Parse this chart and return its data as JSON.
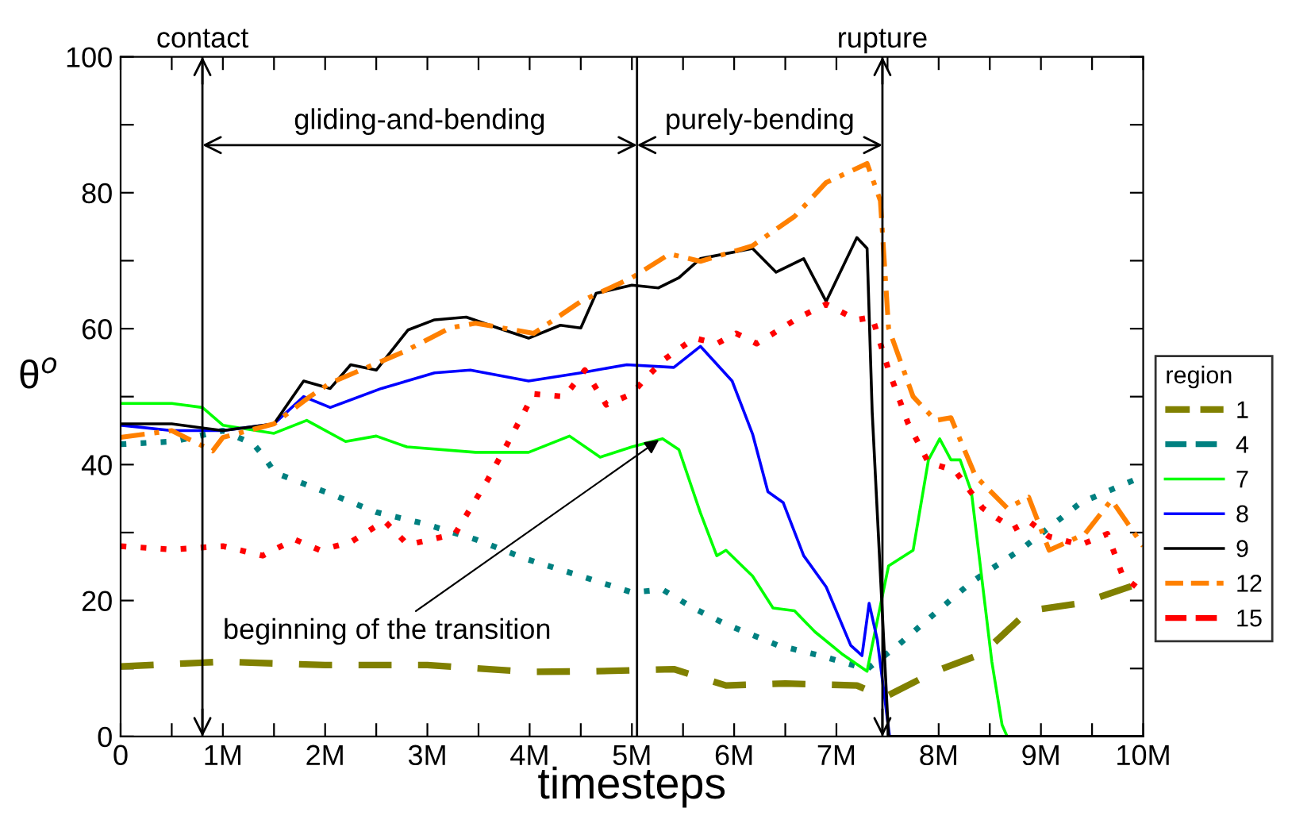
{
  "chart_data": {
    "type": "line",
    "xlabel": "timesteps",
    "ylabel": "θ$^{o}$",
    "legend_title": "region",
    "legend": "right",
    "xlim": [
      0,
      10000000
    ],
    "ylim": [
      0,
      100
    ],
    "xticks": [
      0,
      {
        "value": 500000,
        "label": null
      },
      {
        "value": 1000000,
        "label": "1M"
      },
      {
        "value": 1500000,
        "label": null
      },
      {
        "value": 2000000,
        "label": "2M"
      },
      {
        "value": 2500000,
        "label": null
      },
      {
        "value": 3000000,
        "label": "3M"
      },
      {
        "value": 3500000,
        "label": null
      },
      {
        "value": 4000000,
        "label": "4M"
      },
      {
        "value": 4500000,
        "label": null
      },
      {
        "value": 5000000,
        "label": "5M"
      },
      {
        "value": 5500000,
        "label": null
      },
      {
        "value": 6000000,
        "label": "6M"
      },
      {
        "value": 6500000,
        "label": null
      },
      {
        "value": 7000000,
        "label": "7M"
      },
      {
        "value": 7500000,
        "label": null
      },
      {
        "value": 8000000,
        "label": "8M"
      },
      {
        "value": 8500000,
        "label": null
      },
      {
        "value": 9000000,
        "label": "9M"
      },
      {
        "value": 9500000,
        "label": null
      },
      {
        "value": 10000000,
        "label": "10M"
      }
    ],
    "yticks": [
      0,
      {
        "value": 10,
        "label": null
      },
      20,
      {
        "value": 30,
        "label": null
      },
      40,
      {
        "value": 50,
        "label": null
      },
      60,
      {
        "value": 70,
        "label": null
      },
      80,
      {
        "value": 90,
        "label": null
      },
      100
    ],
    "ref_lines": [
      {
        "axis": "x",
        "value": 800000,
        "label": "contact"
      },
      {
        "axis": "x",
        "value": 5050000
      },
      {
        "axis": "x",
        "value": 7450000,
        "label": "rupture"
      }
    ],
    "annotations": [
      "gliding-and-bending",
      "purely-bending",
      {
        "text": "beginning of the transition",
        "x": 5300000,
        "y": 44
      }
    ],
    "series": [
      {
        "name": "1",
        "color": "#808000",
        "line_style": "dashed",
        "x": [
          0,
          1000000,
          2000000,
          3000000,
          4000000,
          4650000,
          5410000,
          5920000,
          6500000,
          7200000,
          7430000,
          7500000,
          7970000,
          8430000,
          8880000,
          9390000,
          10000000
        ],
        "values": [
          10.3,
          11,
          10.5,
          10.5,
          9.5,
          9.6,
          9.9,
          7.5,
          7.8,
          7.5,
          6,
          6,
          9.6,
          12.2,
          18.5,
          19.6,
          22.7
        ]
      },
      {
        "name": "4",
        "color": "#008080",
        "line_style": "dotted",
        "x": [
          0,
          520000,
          1000000,
          1300000,
          1390000,
          1510000,
          2000000,
          2500000,
          2970000,
          3470000,
          3990000,
          4500000,
          5000000,
          5300000,
          5600000,
          5920000,
          6430000,
          6840000,
          7300000,
          7600000,
          7900000,
          8320000,
          8830000,
          9390000,
          10000000
        ],
        "values": [
          43,
          43.4,
          45,
          43,
          41.4,
          38.8,
          36,
          33,
          31.3,
          29,
          26,
          23.6,
          21.2,
          21.6,
          18.9,
          16.5,
          13.4,
          11.9,
          9.9,
          13.4,
          17.3,
          22.7,
          27.8,
          34.4,
          38.3
        ]
      },
      {
        "name": "7",
        "color": "#00ff00",
        "line_style": "solid",
        "x": [
          0,
          500000,
          800000,
          1000000,
          1500000,
          1820000,
          2200000,
          2500000,
          2800000,
          3470000,
          3990000,
          4390000,
          4690000,
          5000000,
          5300000,
          5460000,
          5670000,
          5830000,
          5920000,
          6180000,
          6380000,
          6590000,
          6790000,
          7050000,
          7300000,
          7350000,
          7510000,
          7750000,
          7900000,
          8010000,
          8120000,
          8210000,
          8320000,
          8520000,
          8620000,
          8670000,
          10000000
        ],
        "values": [
          49,
          49,
          48.4,
          45.8,
          44.6,
          46.5,
          43.4,
          44.2,
          42.6,
          41.8,
          41.8,
          44.2,
          41.1,
          42.6,
          43.8,
          42.2,
          32.9,
          26.6,
          27.4,
          23.6,
          18.9,
          18.5,
          15.4,
          12.2,
          9.6,
          13.4,
          25.1,
          27.4,
          40.7,
          43.8,
          40.7,
          40.7,
          36,
          11,
          1.7,
          0,
          0
        ]
      },
      {
        "name": "8",
        "color": "#0000ff",
        "line_style": "solid",
        "x": [
          0,
          500000,
          1000000,
          1500000,
          1790000,
          2050000,
          2550000,
          3070000,
          3420000,
          3990000,
          4500000,
          4950000,
          5410000,
          5670000,
          5980000,
          6180000,
          6330000,
          6480000,
          6680000,
          6900000,
          7140000,
          7250000,
          7320000,
          7400000,
          7520000,
          10000000
        ],
        "values": [
          45.8,
          45,
          45,
          46,
          50,
          48.4,
          51.2,
          53.5,
          53.9,
          52.3,
          53.5,
          54.7,
          54.3,
          57.4,
          52.3,
          44.5,
          36,
          34.4,
          26.6,
          22,
          13.4,
          11.9,
          19.6,
          14.2,
          0,
          0
        ]
      },
      {
        "name": "9",
        "color": "#000000",
        "line_style": "solid",
        "x": [
          0,
          500000,
          1000000,
          1500000,
          1790000,
          2050000,
          2250000,
          2500000,
          2810000,
          3070000,
          3380000,
          3690000,
          3990000,
          4300000,
          4500000,
          4650000,
          5000000,
          5260000,
          5460000,
          5670000,
          6180000,
          6410000,
          6680000,
          6900000,
          7200000,
          7300000,
          7350000,
          7510000,
          10000000
        ],
        "values": [
          46,
          46,
          45,
          46,
          52.3,
          51.2,
          54.7,
          53.9,
          59.8,
          61.3,
          61.7,
          60.1,
          58.6,
          60.5,
          60.1,
          65.2,
          66.4,
          66,
          67.5,
          70.3,
          71.8,
          68.3,
          70.3,
          64,
          73.4,
          71.8,
          47.7,
          0,
          0
        ]
      },
      {
        "name": "12",
        "color": "#ff8000",
        "line_style": "dashdot",
        "x": [
          0,
          500000,
          900000,
          1000000,
          1500000,
          1850000,
          2050000,
          2770000,
          3220000,
          3470000,
          4040000,
          4500000,
          5000000,
          5370000,
          5670000,
          6180000,
          6590000,
          6900000,
          7300000,
          7430000,
          7510000,
          7750000,
          7970000,
          8120000,
          8360000,
          8670000,
          8880000,
          9080000,
          9430000,
          9690000,
          9850000,
          10000000
        ],
        "values": [
          44,
          45,
          42,
          44,
          46,
          50,
          52,
          56.6,
          60.1,
          60.8,
          59.3,
          64,
          67.5,
          71,
          69.9,
          72.2,
          76.5,
          81.5,
          84.3,
          78.8,
          60.1,
          50,
          46.5,
          46.9,
          38.3,
          33.6,
          35.2,
          27.4,
          29.8,
          34.8,
          31.3,
          28
        ]
      },
      {
        "name": "15",
        "color": "#ff0000",
        "line_style": "dotted",
        "x": [
          0,
          500000,
          1000000,
          1390000,
          1700000,
          1950000,
          2250000,
          2580000,
          2810000,
          3270000,
          3580000,
          3780000,
          4040000,
          4340000,
          4540000,
          4750000,
          5000000,
          5110000,
          5310000,
          5610000,
          5830000,
          6020000,
          6220000,
          6640000,
          6900000,
          7200000,
          7350000,
          7510000,
          7700000,
          7900000,
          8160000,
          8430000,
          8730000,
          8880000,
          9080000,
          9390000,
          9650000,
          9800000,
          10000000
        ],
        "values": [
          28,
          27.5,
          28,
          26.6,
          29,
          27.4,
          28.6,
          31.7,
          28.2,
          29.8,
          37.5,
          43,
          50.4,
          50,
          53.9,
          48.8,
          50.4,
          52.3,
          55.4,
          58.6,
          57.8,
          59.3,
          57.8,
          61.7,
          63.6,
          61.3,
          61.7,
          53.9,
          46.1,
          40.3,
          39.1,
          33.6,
          30.5,
          31.7,
          29.4,
          28.2,
          29.8,
          23.6,
          21.2
        ]
      }
    ]
  }
}
